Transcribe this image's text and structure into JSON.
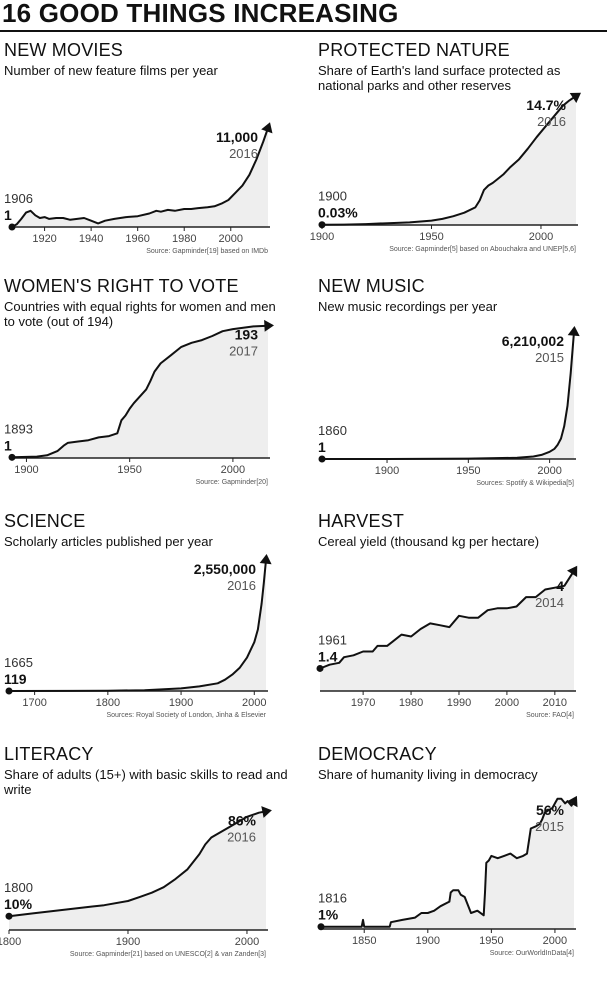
{
  "page": {
    "title": "16 GOOD THINGS INCREASING"
  },
  "chart_data": [
    {
      "type": "area",
      "title": "NEW MOVIES",
      "subtitle": "Number of new feature films per year",
      "xlim": [
        1906,
        2016
      ],
      "xticks": [
        1920,
        1940,
        1960,
        1980,
        2000
      ],
      "start": {
        "year": "1906",
        "value": "1"
      },
      "end": {
        "year": "2016",
        "value": "11,000"
      },
      "source": "Source: Gapminder[19] based on IMDb",
      "ylim": [
        0,
        11000
      ],
      "points": [
        [
          1906,
          1
        ],
        [
          1908,
          300
        ],
        [
          1910,
          900
        ],
        [
          1912,
          1600
        ],
        [
          1914,
          1800
        ],
        [
          1916,
          1300
        ],
        [
          1918,
          1000
        ],
        [
          1920,
          1100
        ],
        [
          1922,
          900
        ],
        [
          1925,
          1000
        ],
        [
          1928,
          1000
        ],
        [
          1931,
          800
        ],
        [
          1934,
          900
        ],
        [
          1937,
          1000
        ],
        [
          1940,
          700
        ],
        [
          1943,
          400
        ],
        [
          1946,
          700
        ],
        [
          1950,
          900
        ],
        [
          1955,
          1100
        ],
        [
          1960,
          1200
        ],
        [
          1965,
          1500
        ],
        [
          1968,
          1800
        ],
        [
          1970,
          1700
        ],
        [
          1973,
          1900
        ],
        [
          1976,
          1800
        ],
        [
          1980,
          2000
        ],
        [
          1983,
          2000
        ],
        [
          1986,
          2100
        ],
        [
          1990,
          2200
        ],
        [
          1993,
          2300
        ],
        [
          1996,
          2600
        ],
        [
          1999,
          3000
        ],
        [
          2002,
          3800
        ],
        [
          2005,
          4600
        ],
        [
          2008,
          5800
        ],
        [
          2011,
          7500
        ],
        [
          2014,
          9500
        ],
        [
          2016,
          11000
        ]
      ]
    },
    {
      "type": "area",
      "title": "PROTECTED NATURE",
      "subtitle": "Share of Earth's land surface protected as national parks and other reserves",
      "xlim": [
        1900,
        2016
      ],
      "xticks": [
        1900,
        1950,
        2000
      ],
      "start": {
        "year": "1900",
        "value": "0.03%"
      },
      "end": {
        "year": "2016",
        "value": "14.7%"
      },
      "source": "Source: Gapminder[5] based on Abouchakra and UNEP[5,6]",
      "ylim": [
        0,
        14.7
      ],
      "points": [
        [
          1900,
          0.03
        ],
        [
          1910,
          0.05
        ],
        [
          1920,
          0.1
        ],
        [
          1930,
          0.2
        ],
        [
          1940,
          0.3
        ],
        [
          1950,
          0.5
        ],
        [
          1955,
          0.7
        ],
        [
          1960,
          1.0
        ],
        [
          1965,
          1.4
        ],
        [
          1970,
          2.0
        ],
        [
          1972,
          2.8
        ],
        [
          1974,
          4.0
        ],
        [
          1976,
          4.5
        ],
        [
          1978,
          4.8
        ],
        [
          1980,
          5.2
        ],
        [
          1983,
          5.8
        ],
        [
          1986,
          6.6
        ],
        [
          1990,
          7.5
        ],
        [
          1994,
          8.7
        ],
        [
          1998,
          10.0
        ],
        [
          2002,
          11.2
        ],
        [
          2006,
          12.4
        ],
        [
          2010,
          13.6
        ],
        [
          2013,
          14.2
        ],
        [
          2016,
          14.7
        ]
      ]
    },
    {
      "type": "area",
      "title": "WOMEN'S RIGHT TO VOTE",
      "subtitle": "Countries with equal rights for women and men to vote (out of 194)",
      "xlim": [
        1893,
        2017
      ],
      "xticks": [
        1900,
        1950,
        2000
      ],
      "start": {
        "year": "1893",
        "value": "1"
      },
      "end": {
        "year": "2017",
        "value": "193"
      },
      "source": "Source: Gapminder[20]",
      "ylim": [
        0,
        194
      ],
      "points": [
        [
          1893,
          1
        ],
        [
          1905,
          2
        ],
        [
          1910,
          4
        ],
        [
          1915,
          10
        ],
        [
          1918,
          18
        ],
        [
          1920,
          22
        ],
        [
          1925,
          24
        ],
        [
          1930,
          26
        ],
        [
          1935,
          30
        ],
        [
          1940,
          32
        ],
        [
          1944,
          36
        ],
        [
          1946,
          55
        ],
        [
          1948,
          62
        ],
        [
          1950,
          72
        ],
        [
          1952,
          80
        ],
        [
          1955,
          90
        ],
        [
          1958,
          100
        ],
        [
          1960,
          112
        ],
        [
          1962,
          126
        ],
        [
          1965,
          138
        ],
        [
          1970,
          150
        ],
        [
          1975,
          162
        ],
        [
          1980,
          168
        ],
        [
          1985,
          172
        ],
        [
          1990,
          178
        ],
        [
          1995,
          185
        ],
        [
          2000,
          188
        ],
        [
          2005,
          190
        ],
        [
          2010,
          192
        ],
        [
          2017,
          193
        ]
      ]
    },
    {
      "type": "area",
      "title": "NEW MUSIC",
      "subtitle": "New music recordings per year",
      "xlim": [
        1860,
        2015
      ],
      "xticks": [
        1900,
        1950,
        2000
      ],
      "start": {
        "year": "1860",
        "value": "1"
      },
      "end": {
        "year": "2015",
        "value": "6,210,002"
      },
      "source": "Sources: Spotify & Wikipedia[5]",
      "ylim": [
        0,
        6210002
      ],
      "points": [
        [
          1860,
          1
        ],
        [
          1900,
          2000
        ],
        [
          1950,
          20000
        ],
        [
          1980,
          60000
        ],
        [
          1990,
          120000
        ],
        [
          1995,
          200000
        ],
        [
          2000,
          350000
        ],
        [
          2003,
          500000
        ],
        [
          2005,
          700000
        ],
        [
          2007,
          1000000
        ],
        [
          2009,
          1600000
        ],
        [
          2011,
          2600000
        ],
        [
          2013,
          4200000
        ],
        [
          2015,
          6210002
        ]
      ]
    },
    {
      "type": "area",
      "title": "SCIENCE",
      "subtitle": "Scholarly articles published per year",
      "xlim": [
        1665,
        2016
      ],
      "xticks": [
        1700,
        1800,
        1900,
        2000
      ],
      "start": {
        "year": "1665",
        "value": "119"
      },
      "end": {
        "year": "2016",
        "value": "2,550,000"
      },
      "source": "Sources: Royal Society of London, Jinha & Elsevier",
      "ylim": [
        0,
        2550000
      ],
      "points": [
        [
          1665,
          119
        ],
        [
          1750,
          2000
        ],
        [
          1800,
          5000
        ],
        [
          1850,
          15000
        ],
        [
          1900,
          50000
        ],
        [
          1925,
          90000
        ],
        [
          1950,
          150000
        ],
        [
          1960,
          220000
        ],
        [
          1970,
          320000
        ],
        [
          1980,
          450000
        ],
        [
          1990,
          650000
        ],
        [
          2000,
          950000
        ],
        [
          2005,
          1200000
        ],
        [
          2010,
          1700000
        ],
        [
          2013,
          2100000
        ],
        [
          2016,
          2550000
        ]
      ]
    },
    {
      "type": "line",
      "title": "HARVEST",
      "subtitle": "Cereal yield (thousand kg per hectare)",
      "xlim": [
        1961,
        2014
      ],
      "xticks": [
        1970,
        1980,
        1990,
        2000,
        2010
      ],
      "start": {
        "year": "1961",
        "value": "1.4"
      },
      "end": {
        "year": "2014",
        "value": "4"
      },
      "source": "Source: FAO[4]",
      "ylim": [
        0.8,
        4.1
      ],
      "points": [
        [
          1961,
          1.4
        ],
        [
          1963,
          1.5
        ],
        [
          1965,
          1.55
        ],
        [
          1966,
          1.7
        ],
        [
          1968,
          1.75
        ],
        [
          1970,
          1.85
        ],
        [
          1972,
          1.85
        ],
        [
          1973,
          2.0
        ],
        [
          1975,
          2.0
        ],
        [
          1976,
          2.1
        ],
        [
          1978,
          2.3
        ],
        [
          1980,
          2.25
        ],
        [
          1982,
          2.45
        ],
        [
          1984,
          2.6
        ],
        [
          1986,
          2.55
        ],
        [
          1988,
          2.5
        ],
        [
          1990,
          2.8
        ],
        [
          1992,
          2.75
        ],
        [
          1994,
          2.75
        ],
        [
          1996,
          2.95
        ],
        [
          1998,
          3.0
        ],
        [
          2000,
          3.0
        ],
        [
          2002,
          3.05
        ],
        [
          2004,
          3.3
        ],
        [
          2006,
          3.3
        ],
        [
          2008,
          3.5
        ],
        [
          2010,
          3.55
        ],
        [
          2012,
          3.6
        ],
        [
          2014,
          4.0
        ]
      ]
    },
    {
      "type": "area",
      "title": "LITERACY",
      "subtitle": "Share of adults (15+) with basic skills to read and write",
      "xlim": [
        1800,
        2016
      ],
      "xticks": [
        1800,
        1900,
        2000
      ],
      "start": {
        "year": "1800",
        "value": "10%"
      },
      "end": {
        "year": "2016",
        "value": "86%"
      },
      "source": "Source: Gapminder[21] based on UNESCO[2] & van Zanden[3]",
      "ylim": [
        0,
        100
      ],
      "points": [
        [
          1800,
          10
        ],
        [
          1820,
          12
        ],
        [
          1850,
          15
        ],
        [
          1870,
          17
        ],
        [
          1880,
          18
        ],
        [
          1900,
          21
        ],
        [
          1910,
          24
        ],
        [
          1920,
          27
        ],
        [
          1930,
          31
        ],
        [
          1940,
          37
        ],
        [
          1950,
          44
        ],
        [
          1960,
          55
        ],
        [
          1965,
          62
        ],
        [
          1970,
          67
        ],
        [
          1980,
          72
        ],
        [
          1990,
          77
        ],
        [
          2000,
          82
        ],
        [
          2010,
          85
        ],
        [
          2016,
          86
        ]
      ]
    },
    {
      "type": "area",
      "title": "DEMOCRACY",
      "subtitle": "Share of humanity living in democracy",
      "xlim": [
        1816,
        2015
      ],
      "xticks": [
        1850,
        1900,
        1950,
        2000
      ],
      "start": {
        "year": "1816",
        "value": "1%"
      },
      "end": {
        "year": "2015",
        "value": "56%"
      },
      "source": "Source: OurWorldInData[4]",
      "ylim": [
        0,
        60
      ],
      "points": [
        [
          1816,
          1
        ],
        [
          1848,
          1
        ],
        [
          1849,
          4
        ],
        [
          1850,
          1
        ],
        [
          1870,
          1
        ],
        [
          1871,
          3
        ],
        [
          1880,
          4
        ],
        [
          1890,
          5
        ],
        [
          1895,
          7
        ],
        [
          1900,
          7
        ],
        [
          1905,
          8
        ],
        [
          1910,
          10
        ],
        [
          1917,
          12
        ],
        [
          1918,
          16
        ],
        [
          1920,
          17
        ],
        [
          1924,
          17
        ],
        [
          1926,
          15
        ],
        [
          1929,
          14
        ],
        [
          1934,
          7
        ],
        [
          1939,
          8
        ],
        [
          1944,
          6
        ],
        [
          1945,
          16
        ],
        [
          1946,
          29
        ],
        [
          1948,
          30
        ],
        [
          1950,
          32
        ],
        [
          1955,
          31
        ],
        [
          1960,
          32
        ],
        [
          1965,
          33
        ],
        [
          1970,
          31
        ],
        [
          1975,
          32
        ],
        [
          1978,
          33
        ],
        [
          1981,
          44
        ],
        [
          1985,
          45
        ],
        [
          1988,
          46
        ],
        [
          1990,
          48
        ],
        [
          1992,
          51
        ],
        [
          1995,
          52
        ],
        [
          1998,
          53
        ],
        [
          2000,
          55
        ],
        [
          2002,
          57
        ],
        [
          2005,
          57
        ],
        [
          2008,
          55
        ],
        [
          2010,
          56
        ],
        [
          2013,
          54
        ],
        [
          2015,
          56
        ]
      ]
    }
  ]
}
